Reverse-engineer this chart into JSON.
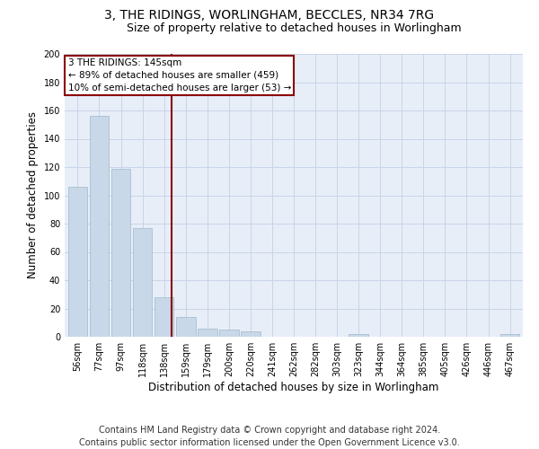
{
  "title": "3, THE RIDINGS, WORLINGHAM, BECCLES, NR34 7RG",
  "subtitle": "Size of property relative to detached houses in Worlingham",
  "xlabel": "Distribution of detached houses by size in Worlingham",
  "ylabel": "Number of detached properties",
  "categories": [
    "56sqm",
    "77sqm",
    "97sqm",
    "118sqm",
    "138sqm",
    "159sqm",
    "179sqm",
    "200sqm",
    "220sqm",
    "241sqm",
    "262sqm",
    "282sqm",
    "303sqm",
    "323sqm",
    "344sqm",
    "364sqm",
    "385sqm",
    "405sqm",
    "426sqm",
    "446sqm",
    "467sqm"
  ],
  "values": [
    106,
    156,
    119,
    77,
    28,
    14,
    6,
    5,
    4,
    0,
    0,
    0,
    0,
    2,
    0,
    0,
    0,
    0,
    0,
    0,
    2
  ],
  "bar_color": "#c8d8e8",
  "bar_edge_color": "#a0b8cc",
  "grid_color": "#c8d4e8",
  "background_color": "#e8eef8",
  "annotation_line1": "3 THE RIDINGS: 145sqm",
  "annotation_line2": "← 89% of detached houses are smaller (459)",
  "annotation_line3": "10% of semi-detached houses are larger (53) →",
  "ylim": [
    0,
    200
  ],
  "yticks": [
    0,
    20,
    40,
    60,
    80,
    100,
    120,
    140,
    160,
    180,
    200
  ],
  "footer": "Contains HM Land Registry data © Crown copyright and database right 2024.\nContains public sector information licensed under the Open Government Licence v3.0.",
  "title_fontsize": 10,
  "subtitle_fontsize": 9,
  "xlabel_fontsize": 8.5,
  "ylabel_fontsize": 8.5,
  "footer_fontsize": 7,
  "annotation_fontsize": 7.5,
  "tick_fontsize": 7
}
